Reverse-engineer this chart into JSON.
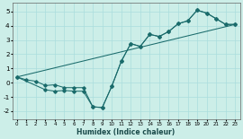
{
  "title": "",
  "xlabel": "Humidex (Indice chaleur)",
  "bg_color": "#cceee8",
  "line_color": "#1a6b6b",
  "grid_color": "#aadddd",
  "xlim": [
    -0.5,
    23.5
  ],
  "ylim": [
    -2.6,
    5.6
  ],
  "xticks": [
    0,
    1,
    2,
    3,
    4,
    5,
    6,
    7,
    8,
    9,
    10,
    11,
    12,
    13,
    14,
    15,
    16,
    17,
    18,
    19,
    20,
    21,
    22,
    23
  ],
  "yticks": [
    -2,
    -1,
    0,
    1,
    2,
    3,
    4,
    5
  ],
  "line1_x": [
    0,
    1,
    2,
    3,
    4,
    5,
    6,
    7,
    8,
    9,
    10,
    11,
    12,
    13,
    14,
    15,
    16,
    17,
    18,
    19,
    20,
    21,
    22,
    23
  ],
  "line1_y": [
    0.4,
    0.2,
    0.1,
    -0.2,
    -0.15,
    -0.35,
    -0.35,
    -0.35,
    -1.7,
    -1.75,
    -0.25,
    1.5,
    2.75,
    2.55,
    3.4,
    3.25,
    3.6,
    4.15,
    4.35,
    5.1,
    4.9,
    4.5,
    4.1,
    4.1
  ],
  "line2_x": [
    0,
    3,
    4,
    5,
    6,
    7,
    8,
    9,
    10,
    11,
    12,
    13,
    14,
    15,
    16,
    17,
    18,
    19,
    20,
    21,
    22,
    23
  ],
  "line2_y": [
    0.4,
    -0.5,
    -0.6,
    -0.55,
    -0.6,
    -0.6,
    -1.7,
    -1.75,
    -0.25,
    1.5,
    2.75,
    2.55,
    3.4,
    3.25,
    3.6,
    4.15,
    4.35,
    5.1,
    4.9,
    4.5,
    4.1,
    4.1
  ],
  "line3_x": [
    0,
    23
  ],
  "line3_y": [
    0.4,
    4.1
  ]
}
